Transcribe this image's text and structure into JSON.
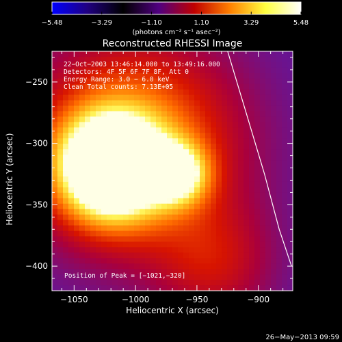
{
  "chart_data": {
    "type": "heatmap",
    "title": "Reconstructed RHESSI Image",
    "xlabel": "Heliocentric X (arcsec)",
    "ylabel": "Heliocentric Y (arcsec)",
    "xlim": [
      -1068,
      -872
    ],
    "ylim": [
      -420,
      -225
    ],
    "xticks": [
      {
        "value": -1050,
        "label": "−1050"
      },
      {
        "value": -1000,
        "label": "−1000"
      },
      {
        "value": -950,
        "label": "−950"
      },
      {
        "value": -900,
        "label": "−900"
      }
    ],
    "yticks": [
      {
        "value": -250,
        "label": "−250"
      },
      {
        "value": -300,
        "label": "−300"
      },
      {
        "value": -350,
        "label": "−350"
      },
      {
        "value": -400,
        "label": "−400"
      }
    ],
    "colorbar": {
      "range": [
        -5.48,
        5.48
      ],
      "tick_labels": [
        "−5.48",
        "−3.29",
        "−1.10",
        "1.10",
        "3.29",
        "5.48"
      ],
      "tick_values": [
        -5.48,
        -3.29,
        -1.1,
        1.1,
        3.29,
        5.48
      ],
      "unit_label": "(photons cm⁻² s⁻¹ asec⁻²)",
      "colors": [
        "#0000ff",
        "#200080",
        "#000000",
        "#500080",
        "#c00000",
        "#ff8000",
        "#ffff40",
        "#ffffff"
      ]
    },
    "annotations": [
      "22−Oct−2003 13:46:14.000 to 13:49:16.000",
      "Detectors: 4F 5F 6F 7F 8F, Att 0",
      "Energy Range: 3.0 − 6.0 keV",
      "Clean    Total counts: 7.13E+05",
      "Position of Peak = [−1021,−320]"
    ],
    "sources": [
      {
        "x": -1021,
        "y": -320,
        "sigma": 30,
        "amplitude": 1.0
      },
      {
        "x": -965,
        "y": -325,
        "sigma": 17,
        "amplitude": 0.55
      },
      {
        "x": -1000,
        "y": -300,
        "sigma": 62,
        "amplitude": 0.55
      },
      {
        "x": -935,
        "y": -400,
        "sigma": 35,
        "amplitude": 0.25
      }
    ],
    "limb_curve": [
      [
        -925,
        -225
      ],
      [
        -910,
        -275
      ],
      [
        -895,
        -325
      ],
      [
        -883,
        -370
      ],
      [
        -873,
        -400
      ]
    ],
    "peak": {
      "x": -1021,
      "y": -320
    }
  },
  "footer": {
    "timestamp": "26−May−2013 09:59"
  }
}
